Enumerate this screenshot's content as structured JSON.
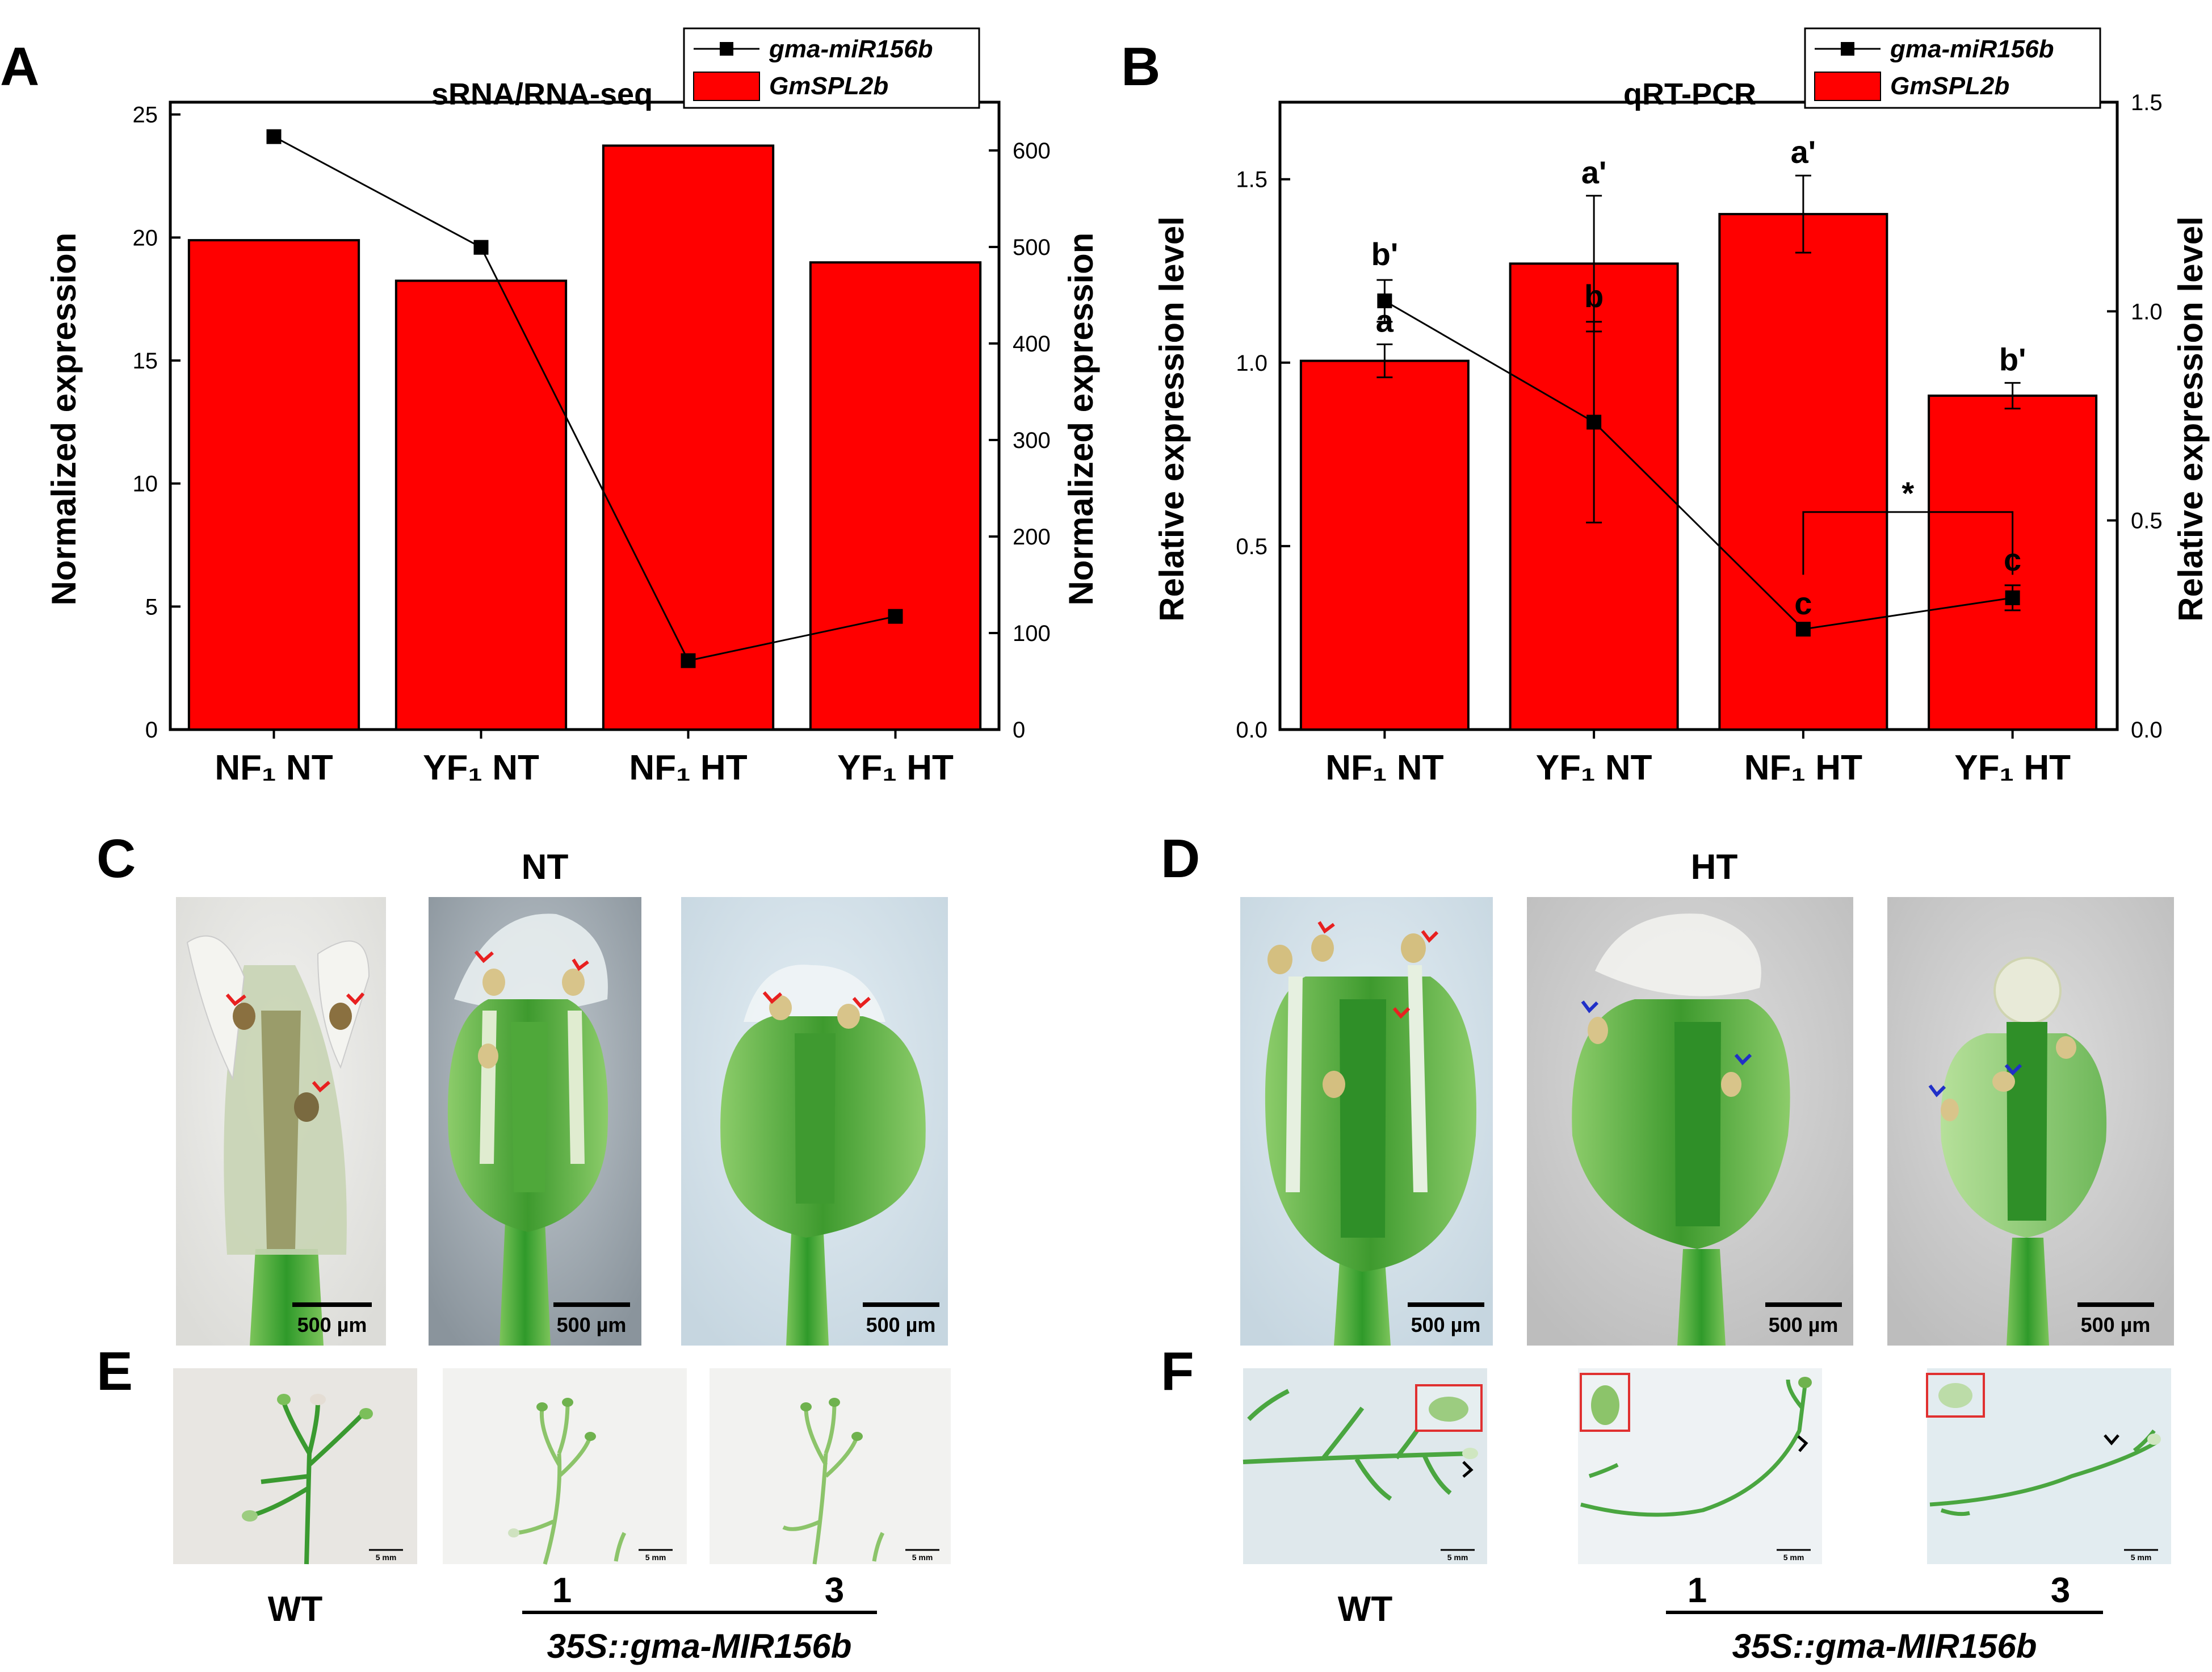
{
  "panels": {
    "A": "A",
    "B": "B",
    "C": "C",
    "D": "D",
    "E": "E",
    "F": "F"
  },
  "chart_data": [
    {
      "panel": "A",
      "type": "bar",
      "title": "sRNA/RNA-seq",
      "categories": [
        "NF₁ NT",
        "YF₁ NT",
        "NF₁ HT",
        "YF₁ HT"
      ],
      "ylabel_left": "Normalized expression",
      "ylabel_right": "Normalized expression",
      "ylim_left": [
        0,
        25.5
      ],
      "ylim_right": [
        0,
        650
      ],
      "yticks_left": [
        0,
        5,
        10,
        15,
        20,
        25
      ],
      "yticks_right": [
        0,
        100,
        200,
        300,
        400,
        500,
        600
      ],
      "legend": [
        "gma-miR156b",
        "GmSPL2b"
      ],
      "legend_position": "top-right",
      "series": [
        {
          "name": "GmSPL2b",
          "kind": "bar",
          "axis": "right",
          "color": "#ff0000",
          "values": [
            507,
            465,
            605,
            484
          ]
        },
        {
          "name": "gma-miR156b",
          "kind": "line",
          "axis": "left",
          "color": "#000000",
          "values": [
            24.1,
            19.6,
            2.8,
            4.6
          ]
        }
      ]
    },
    {
      "panel": "B",
      "type": "bar",
      "title": "qRT-PCR",
      "categories": [
        "NF₁ NT",
        "YF₁ NT",
        "NF₁ HT",
        "YF₁ HT"
      ],
      "ylabel_left": "Relative expression level",
      "ylabel_right": "Relative expression level",
      "ylim_left": [
        0,
        1.71
      ],
      "ylim_right": [
        0,
        1.5
      ],
      "yticks_left": [
        "0.0",
        "0.5",
        "1.0",
        "1.5"
      ],
      "yticks_right": [
        "0.0",
        "0.5",
        "1.0",
        "1.5"
      ],
      "legend": [
        "gma-miR156b",
        "GmSPL2b"
      ],
      "legend_position": "top-right",
      "series": [
        {
          "name": "GmSPL2b",
          "kind": "bar",
          "axis": "left",
          "color": "#ff0000",
          "values": [
            1.005,
            1.27,
            1.405,
            0.91
          ],
          "errors": [
            0.045,
            0.185,
            0.105,
            0.035
          ],
          "labels": [
            "a",
            "a'",
            "a'",
            "b'"
          ]
        },
        {
          "name": "gma-miR156b",
          "kind": "line",
          "axis": "right",
          "color": "#000000",
          "values": [
            1.025,
            0.735,
            0.24,
            0.315
          ],
          "errors": [
            0.05,
            0.24,
            0.0,
            0.03
          ],
          "labels": [
            "b'",
            "b",
            "c",
            "c"
          ]
        }
      ],
      "significance": {
        "between": [
          "NF₁ HT",
          "YF₁ HT"
        ],
        "mark": "*"
      }
    }
  ],
  "photos": {
    "C": {
      "condition": "NT",
      "scale_bars": [
        "500 µm",
        "500 µm",
        "500 µm"
      ]
    },
    "D": {
      "condition": "HT",
      "scale_bars": [
        "500 µm",
        "500 µm",
        "500 µm"
      ]
    },
    "E": {
      "scale_bars": [
        "5 mm",
        "5 mm",
        "5 mm"
      ],
      "wt_label": "WT",
      "line1": "1",
      "line3": "3",
      "transgene": "35S::gma-MIR156b"
    },
    "F": {
      "scale_bars": [
        "5 mm",
        "5 mm",
        "5 mm"
      ],
      "wt_label": "WT",
      "line1": "1",
      "line3": "3",
      "transgene": "35S::gma-MIR156b"
    }
  },
  "colors": {
    "bar": "#ff0000",
    "line": "#000000",
    "arrow_red": "#e82020",
    "arrow_blue": "#2030c8",
    "inset_border": "#e03030"
  }
}
